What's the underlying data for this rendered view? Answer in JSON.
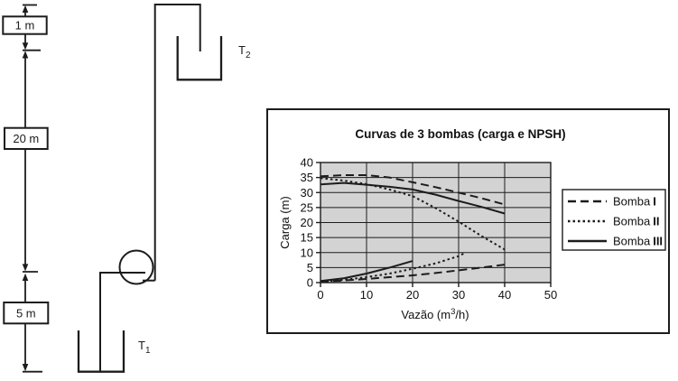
{
  "schematic": {
    "dim_labels": [
      "1 m",
      "20 m",
      "5 m"
    ],
    "tank_top": {
      "main": "T",
      "sub": "2"
    },
    "tank_bottom": {
      "main": "T",
      "sub": "1"
    }
  },
  "chart": {
    "title": "Curvas de 3 bombas (carga e NPSH)",
    "ylabel": "Carga (m)",
    "xlabel_main": "Vazão (m",
    "xlabel_sup": "3",
    "xlabel_rest": "/h)"
  },
  "chart_data": {
    "type": "line",
    "title": "Curvas de 3 bombas (carga e NPSH)",
    "xlabel": "Vazão (m³/h)",
    "ylabel": "Carga (m)",
    "xlim": [
      0,
      50
    ],
    "ylim": [
      0,
      40
    ],
    "x_ticks": [
      0,
      10,
      20,
      30,
      40,
      50
    ],
    "y_ticks": [
      0,
      5,
      10,
      15,
      20,
      25,
      30,
      35,
      40
    ],
    "grid": true,
    "plot_background": "#d3d3d3",
    "legend_position": "right-outside",
    "series": [
      {
        "name": "Bomba I (carga)",
        "style": "long-dash",
        "points": [
          [
            0,
            35.4
          ],
          [
            5,
            35.8
          ],
          [
            10,
            35.8
          ],
          [
            15,
            35.0
          ],
          [
            20,
            33.4
          ],
          [
            25,
            31.8
          ],
          [
            30,
            30.0
          ],
          [
            35,
            28.1
          ],
          [
            40,
            26.0
          ]
        ]
      },
      {
        "name": "Bomba II (carga)",
        "style": "dotted",
        "points": [
          [
            0,
            34.8
          ],
          [
            5,
            34.0
          ],
          [
            10,
            32.8
          ],
          [
            15,
            31.0
          ],
          [
            20,
            28.8
          ],
          [
            25,
            24.8
          ],
          [
            30,
            20.3
          ],
          [
            35,
            15.5
          ],
          [
            40,
            11.0
          ]
        ]
      },
      {
        "name": "Bomba III (carga)",
        "style": "solid",
        "points": [
          [
            0,
            32.7
          ],
          [
            5,
            33.2
          ],
          [
            10,
            32.6
          ],
          [
            15,
            31.9
          ],
          [
            20,
            31.0
          ],
          [
            25,
            29.3
          ],
          [
            30,
            27.2
          ],
          [
            35,
            25.2
          ],
          [
            40,
            23.0
          ]
        ]
      },
      {
        "name": "Bomba I (NPSH)",
        "style": "long-dash",
        "points": [
          [
            0,
            0.3
          ],
          [
            5,
            0.7
          ],
          [
            10,
            1.2
          ],
          [
            15,
            1.8
          ],
          [
            20,
            2.4
          ],
          [
            25,
            3.2
          ],
          [
            30,
            4.1
          ],
          [
            35,
            5.0
          ],
          [
            40,
            6.0
          ]
        ]
      },
      {
        "name": "Bomba II (NPSH)",
        "style": "dotted",
        "points": [
          [
            0,
            0.3
          ],
          [
            5,
            0.9
          ],
          [
            10,
            1.8
          ],
          [
            15,
            3.0
          ],
          [
            20,
            4.6
          ],
          [
            25,
            6.4
          ],
          [
            30,
            8.8
          ],
          [
            31.5,
            10.0
          ]
        ]
      },
      {
        "name": "Bomba III (NPSH)",
        "style": "solid",
        "points": [
          [
            0,
            0.5
          ],
          [
            5,
            1.4
          ],
          [
            10,
            3.0
          ],
          [
            15,
            5.0
          ],
          [
            20,
            7.2
          ]
        ]
      }
    ],
    "legend": [
      {
        "label": "Bomba",
        "numeral": "I",
        "style": "long-dash"
      },
      {
        "label": "Bomba",
        "numeral": "II",
        "style": "dotted"
      },
      {
        "label": "Bomba",
        "numeral": "III",
        "style": "solid"
      }
    ]
  }
}
